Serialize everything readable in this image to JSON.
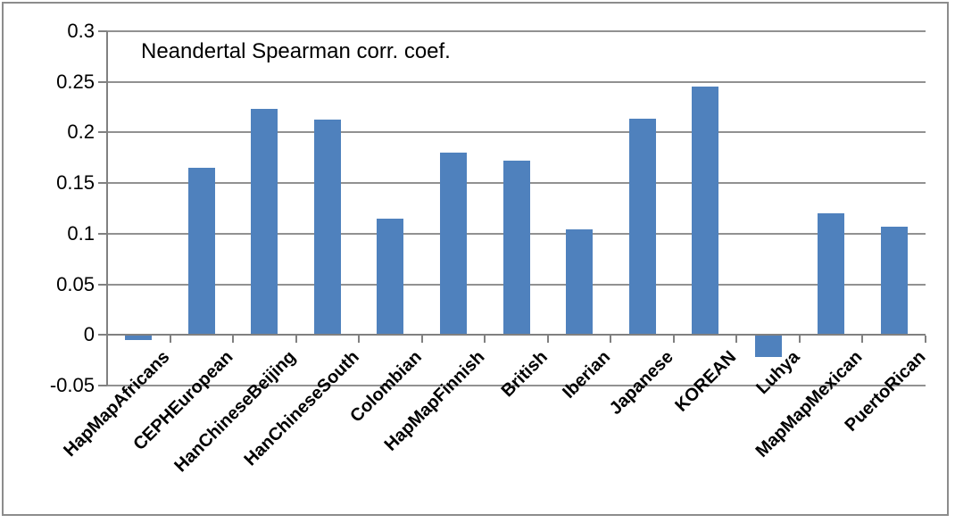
{
  "chart_data": {
    "type": "bar",
    "title": "Neandertal Spearman corr. coef.",
    "categories": [
      "HapMapAfricans",
      "CEPHEuropean",
      "HanChineseBeijing",
      "HanChineseSouth",
      "Colombian",
      "HapMapFinnish",
      "British",
      "Iberian",
      "Japanese",
      "KOREAN",
      "Luhya",
      "MapMapMexican",
      "PuertoRican"
    ],
    "values": [
      -0.005,
      0.165,
      0.223,
      0.213,
      0.115,
      0.18,
      0.172,
      0.104,
      0.214,
      0.245,
      -0.022,
      0.12,
      0.107
    ],
    "xlabel": "",
    "ylabel": "",
    "ylim": [
      -0.05,
      0.3
    ],
    "ytick_step": 0.05,
    "ytick_labels": [
      "0.3",
      "0.25",
      "0.2",
      "0.15",
      "0.1",
      "0.05",
      "0",
      "-0.05"
    ],
    "grid": true,
    "legend": "none",
    "colors": {
      "bar": "#4F81BD",
      "gridline": "#919191",
      "axis": "#808080",
      "text": "#000000",
      "frame_border": "#8C8C8C",
      "background": "#FFFFFF"
    }
  }
}
